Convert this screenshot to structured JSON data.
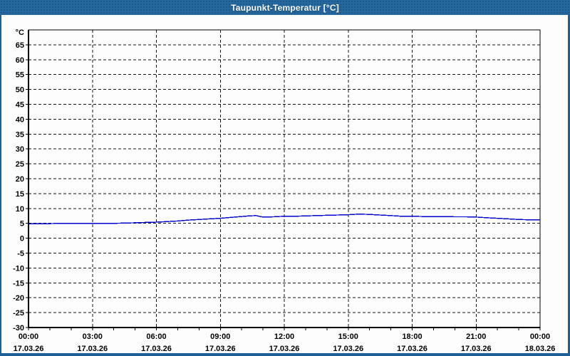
{
  "window": {
    "title": "Taupunkt-Temperatur [°C]",
    "titlebar_color": "#24689f",
    "border_color": "#1f5f97",
    "background": "#fdfdfd"
  },
  "chart_data": {
    "type": "line",
    "title": "Taupunkt-Temperatur [°C]",
    "legend": "none",
    "grid": {
      "style": "dashed",
      "color": "#141414"
    },
    "x_axis": {
      "range_hours": [
        0,
        24
      ],
      "major_tick_every_hours": 3,
      "minor_tick_every_hours": 1,
      "tick_labels_time": [
        "00:00",
        "03:00",
        "06:00",
        "09:00",
        "12:00",
        "15:00",
        "18:00",
        "21:00",
        "00:00"
      ],
      "tick_labels_date": [
        "17.03.26",
        "17.03.26",
        "17.03.26",
        "17.03.26",
        "17.03.26",
        "17.03.26",
        "17.03.26",
        "17.03.26",
        "18.03.26"
      ]
    },
    "y_axis": {
      "unit": "°C",
      "min": -30,
      "max": 70,
      "tick_step": 5,
      "labeled_ticks": [
        65,
        60,
        55,
        50,
        45,
        40,
        35,
        30,
        25,
        20,
        15,
        10,
        5,
        0,
        -5,
        -10,
        -15,
        -20,
        -25,
        -30
      ]
    },
    "series": [
      {
        "name": "Taupunkt-Temperatur",
        "color": "#0000cc",
        "x_hours": [
          0,
          0.5,
          1,
          1.5,
          2,
          2.5,
          3,
          3.5,
          4,
          4.5,
          5,
          5.5,
          6,
          6.5,
          7,
          7.5,
          8,
          8.5,
          9,
          9.5,
          10,
          10.33,
          10.67,
          11,
          11.5,
          12,
          12.5,
          13,
          13.5,
          14,
          14.5,
          15,
          15.5,
          16,
          16.5,
          17,
          17.5,
          18,
          18.5,
          19,
          19.5,
          20,
          20.5,
          21,
          21.5,
          22,
          22.5,
          23,
          23.5,
          24
        ],
        "values_degC": [
          4.8,
          4.9,
          4.9,
          5.0,
          5.0,
          5.0,
          5.0,
          5.0,
          5.0,
          5.1,
          5.2,
          5.3,
          5.4,
          5.6,
          5.8,
          6.1,
          6.3,
          6.5,
          6.7,
          7.0,
          7.3,
          7.5,
          7.6,
          7.1,
          7.2,
          7.4,
          7.4,
          7.5,
          7.6,
          7.7,
          7.8,
          7.9,
          8.1,
          8.0,
          7.8,
          7.6,
          7.4,
          7.4,
          7.3,
          7.3,
          7.3,
          7.2,
          7.2,
          7.1,
          6.9,
          6.7,
          6.5,
          6.3,
          6.2,
          6.2
        ]
      }
    ]
  }
}
